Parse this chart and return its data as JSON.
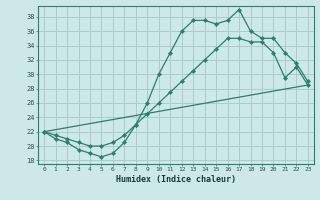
{
  "title": "",
  "xlabel": "Humidex (Indice chaleur)",
  "bg_color": "#cde8e8",
  "grid_color": "#aacccc",
  "line_color": "#2d7d6e",
  "xlim": [
    -0.5,
    23.5
  ],
  "ylim": [
    17.5,
    39.5
  ],
  "xticks": [
    0,
    1,
    2,
    3,
    4,
    5,
    6,
    7,
    8,
    9,
    10,
    11,
    12,
    13,
    14,
    15,
    16,
    17,
    18,
    19,
    20,
    21,
    22,
    23
  ],
  "yticks": [
    18,
    20,
    22,
    24,
    26,
    28,
    30,
    32,
    34,
    36,
    38
  ],
  "line1_x": [
    0,
    1,
    2,
    3,
    4,
    5,
    6,
    7,
    8,
    9,
    10,
    11,
    12,
    13,
    14,
    15,
    16,
    17,
    18,
    19,
    20,
    21,
    22,
    23
  ],
  "line1_y": [
    22,
    21,
    20.5,
    19.5,
    19,
    18.5,
    19,
    20.5,
    23,
    26,
    30,
    33,
    36,
    37.5,
    37.5,
    37,
    37.5,
    39,
    36,
    35,
    35,
    33,
    31.5,
    29
  ],
  "line2_x": [
    0,
    1,
    2,
    3,
    4,
    5,
    6,
    7,
    8,
    9,
    10,
    11,
    12,
    13,
    14,
    15,
    16,
    17,
    18,
    19,
    20,
    21,
    22,
    23
  ],
  "line2_y": [
    22,
    21.5,
    21,
    20.5,
    20,
    20,
    20.5,
    21.5,
    23,
    24.5,
    26,
    27.5,
    29,
    30.5,
    32,
    33.5,
    35,
    35,
    34.5,
    34.5,
    33,
    29.5,
    31,
    28.5
  ],
  "line3_x": [
    0,
    23
  ],
  "line3_y": [
    22,
    28.5
  ]
}
